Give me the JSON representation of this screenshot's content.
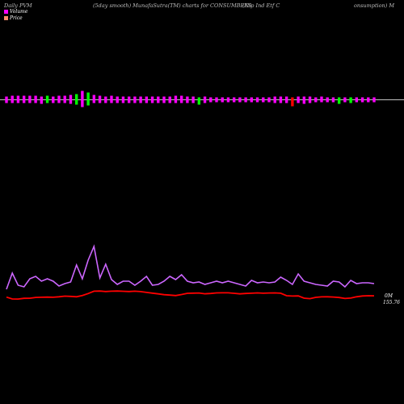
{
  "header": {
    "left": "Daily PVM",
    "center": "(5day smooth) MunafaSutra(TM) charts for CONSUMBEES",
    "right_a": "(Nip Ind Etf  C",
    "right_b": "onsumption) M"
  },
  "legend": {
    "volume_label": "Volume",
    "price_label": "Price",
    "volume_color": "#ff00ff",
    "price_color": "#ff8c69"
  },
  "end_labels": {
    "volume": "0M",
    "price": "155.76"
  },
  "colors": {
    "background": "#000000",
    "axis_line": "#c0c0c0",
    "bar_magenta": "#ff00ff",
    "bar_green": "#00ff00",
    "bar_red": "#ff0000",
    "volume_line": "#cc66ff",
    "price_line": "#ff0000"
  },
  "chart_data": {
    "type": "line",
    "x_count": 64,
    "series": [
      {
        "name": "Volume",
        "values": [
          0.42,
          0.62,
          0.47,
          0.45,
          0.55,
          0.58,
          0.52,
          0.55,
          0.52,
          0.46,
          0.49,
          0.51,
          0.72,
          0.55,
          0.78,
          0.95,
          0.56,
          0.73,
          0.54,
          0.48,
          0.52,
          0.52,
          0.47,
          0.52,
          0.58,
          0.47,
          0.48,
          0.52,
          0.58,
          0.54,
          0.6,
          0.52,
          0.5,
          0.51,
          0.48,
          0.5,
          0.52,
          0.5,
          0.52,
          0.5,
          0.48,
          0.46,
          0.53,
          0.5,
          0.51,
          0.5,
          0.51,
          0.57,
          0.53,
          0.48,
          0.61,
          0.52,
          0.5,
          0.48,
          0.47,
          0.46,
          0.52,
          0.51,
          0.45,
          0.53,
          0.49,
          0.5,
          0.5,
          0.49
        ]
      },
      {
        "name": "Price",
        "values": [
          40.2,
          36.8,
          36.6,
          37.9,
          38.1,
          39.5,
          39.9,
          40.1,
          39.8,
          40.7,
          41.9,
          41.5,
          40.8,
          43.1,
          46.6,
          50.9,
          51.2,
          50.3,
          50.9,
          51.2,
          50.7,
          50.3,
          50.9,
          50.1,
          48.7,
          47.3,
          46.1,
          44.6,
          43.8,
          43.0,
          44.8,
          47.1,
          47.4,
          47.7,
          46.2,
          46.7,
          47.8,
          47.9,
          47.9,
          47.1,
          46.1,
          46.8,
          47.2,
          47.8,
          47.2,
          47.6,
          47.8,
          47.2,
          42.7,
          42.1,
          42.4,
          38.2,
          37.4,
          39.7,
          40.6,
          40.8,
          40.3,
          39.4,
          37.6,
          38.4,
          40.8,
          42.2,
          42.6,
          42.5
        ]
      }
    ],
    "volume_bars": [
      {
        "up": 4,
        "down": 4,
        "color": "magenta"
      },
      {
        "up": 5,
        "down": 4,
        "color": "magenta"
      },
      {
        "up": 5,
        "down": 4,
        "color": "magenta"
      },
      {
        "up": 5,
        "down": 4,
        "color": "magenta"
      },
      {
        "up": 5,
        "down": 4,
        "color": "magenta"
      },
      {
        "up": 5,
        "down": 4,
        "color": "magenta"
      },
      {
        "up": 4,
        "down": 5,
        "color": "magenta"
      },
      {
        "up": 5,
        "down": 4,
        "color": "green"
      },
      {
        "up": 4,
        "down": 4,
        "color": "magenta"
      },
      {
        "up": 5,
        "down": 4,
        "color": "magenta"
      },
      {
        "up": 5,
        "down": 4,
        "color": "magenta"
      },
      {
        "up": 6,
        "down": 5,
        "color": "magenta"
      },
      {
        "up": 7,
        "down": 6,
        "color": "green"
      },
      {
        "up": 11,
        "down": 9,
        "color": "magenta"
      },
      {
        "up": 9,
        "down": 7,
        "color": "green"
      },
      {
        "up": 6,
        "down": 4,
        "color": "magenta"
      },
      {
        "up": 5,
        "down": 4,
        "color": "magenta"
      },
      {
        "up": 4,
        "down": 4,
        "color": "magenta"
      },
      {
        "up": 5,
        "down": 4,
        "color": "magenta"
      },
      {
        "up": 4,
        "down": 4,
        "color": "magenta"
      },
      {
        "up": 4,
        "down": 4,
        "color": "magenta"
      },
      {
        "up": 4,
        "down": 4,
        "color": "magenta"
      },
      {
        "up": 4,
        "down": 4,
        "color": "magenta"
      },
      {
        "up": 4,
        "down": 4,
        "color": "magenta"
      },
      {
        "up": 4,
        "down": 4,
        "color": "magenta"
      },
      {
        "up": 4,
        "down": 4,
        "color": "magenta"
      },
      {
        "up": 4,
        "down": 4,
        "color": "magenta"
      },
      {
        "up": 4,
        "down": 4,
        "color": "magenta"
      },
      {
        "up": 4,
        "down": 4,
        "color": "magenta"
      },
      {
        "up": 5,
        "down": 4,
        "color": "magenta"
      },
      {
        "up": 5,
        "down": 4,
        "color": "magenta"
      },
      {
        "up": 4,
        "down": 4,
        "color": "magenta"
      },
      {
        "up": 4,
        "down": 4,
        "color": "magenta"
      },
      {
        "up": 3,
        "down": 6,
        "color": "green"
      },
      {
        "up": 4,
        "down": 4,
        "color": "magenta"
      },
      {
        "up": 3,
        "down": 3,
        "color": "magenta"
      },
      {
        "up": 3,
        "down": 3,
        "color": "magenta"
      },
      {
        "up": 3,
        "down": 3,
        "color": "magenta"
      },
      {
        "up": 3,
        "down": 3,
        "color": "magenta"
      },
      {
        "up": 3,
        "down": 3,
        "color": "magenta"
      },
      {
        "up": 3,
        "down": 3,
        "color": "magenta"
      },
      {
        "up": 3,
        "down": 3,
        "color": "magenta"
      },
      {
        "up": 3,
        "down": 3,
        "color": "magenta"
      },
      {
        "up": 3,
        "down": 3,
        "color": "magenta"
      },
      {
        "up": 3,
        "down": 3,
        "color": "magenta"
      },
      {
        "up": 3,
        "down": 3,
        "color": "magenta"
      },
      {
        "up": 4,
        "down": 4,
        "color": "magenta"
      },
      {
        "up": 4,
        "down": 4,
        "color": "magenta"
      },
      {
        "up": 4,
        "down": 4,
        "color": "magenta"
      },
      {
        "up": 3,
        "down": 8,
        "color": "red"
      },
      {
        "up": 4,
        "down": 4,
        "color": "magenta"
      },
      {
        "up": 4,
        "down": 5,
        "color": "magenta"
      },
      {
        "up": 4,
        "down": 4,
        "color": "magenta"
      },
      {
        "up": 3,
        "down": 3,
        "color": "magenta"
      },
      {
        "up": 4,
        "down": 3,
        "color": "magenta"
      },
      {
        "up": 3,
        "down": 3,
        "color": "magenta"
      },
      {
        "up": 3,
        "down": 3,
        "color": "magenta"
      },
      {
        "up": 3,
        "down": 5,
        "color": "green"
      },
      {
        "up": 3,
        "down": 3,
        "color": "magenta"
      },
      {
        "up": 3,
        "down": 4,
        "color": "green"
      },
      {
        "up": 3,
        "down": 3,
        "color": "magenta"
      },
      {
        "up": 3,
        "down": 3,
        "color": "magenta"
      },
      {
        "up": 3,
        "down": 3,
        "color": "magenta"
      },
      {
        "up": 3,
        "down": 3,
        "color": "magenta"
      }
    ],
    "title": "(5day smooth) MunafaSutra(TM) charts for CONSUMBEES",
    "xlabel": "",
    "ylabel": "",
    "grid": false,
    "legend_position": "top-left"
  }
}
